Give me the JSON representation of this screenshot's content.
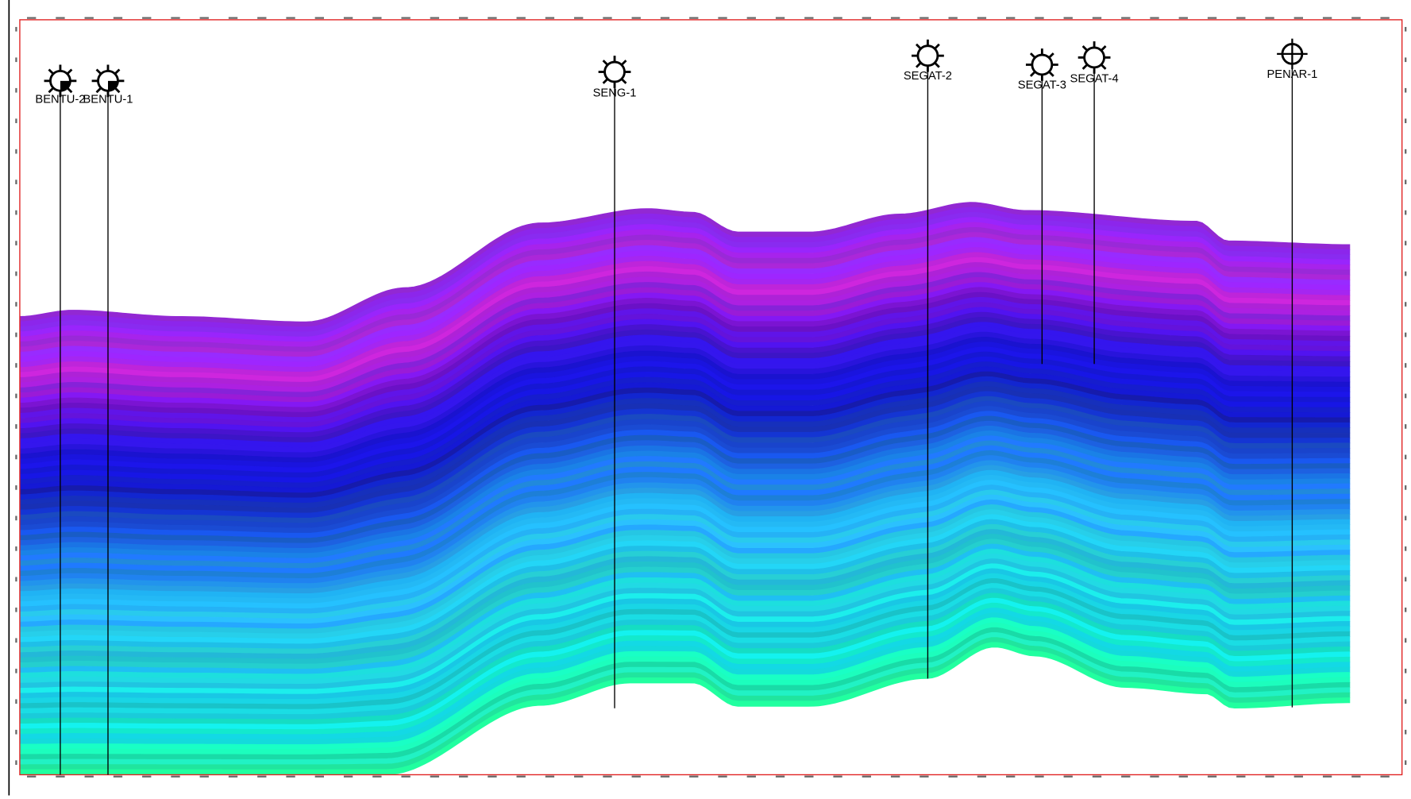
{
  "wells": [
    {
      "label": "BENTU-2"
    },
    {
      "label": "BENTU-1"
    },
    {
      "label": "SENG-1"
    },
    {
      "label": "SEGAT-2"
    },
    {
      "label": "SEGAT-3"
    },
    {
      "label": "SEGAT-4"
    },
    {
      "label": "PENAR-1"
    }
  ]
}
